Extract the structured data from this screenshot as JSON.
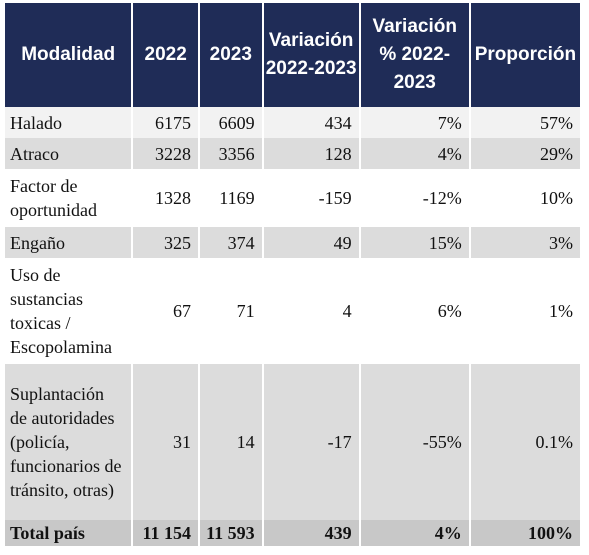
{
  "headers": [
    "Modalidad",
    "2022",
    "2023",
    "Variación 2022-2023",
    "Variación % 2022-2023",
    "Proporción"
  ],
  "rows": [
    {
      "modalidad": "Halado",
      "y2022": "6175",
      "y2023": "6609",
      "variacion": "434",
      "variacion_pct": "7%",
      "proporcion": "57%"
    },
    {
      "modalidad": "Atraco",
      "y2022": "3228",
      "y2023": "3356",
      "variacion": "128",
      "variacion_pct": "4%",
      "proporcion": "29%"
    },
    {
      "modalidad": "Factor de oportunidad",
      "y2022": "1328",
      "y2023": "1169",
      "variacion": "-159",
      "variacion_pct": "-12%",
      "proporcion": "10%"
    },
    {
      "modalidad": "Engaño",
      "y2022": "325",
      "y2023": "374",
      "variacion": "49",
      "variacion_pct": "15%",
      "proporcion": "3%"
    },
    {
      "modalidad": "Uso de sustancias toxicas / Escopolamina",
      "y2022": "67",
      "y2023": "71",
      "variacion": "4",
      "variacion_pct": "6%",
      "proporcion": "1%"
    },
    {
      "modalidad": "Suplantación de autoridades (policía, funcionarios de tránsito, otras)",
      "y2022": "31",
      "y2023": "14",
      "variacion": "-17",
      "variacion_pct": "-55%",
      "proporcion": "0.1%"
    }
  ],
  "total": {
    "modalidad": "Total país",
    "y2022": "11 154",
    "y2023": "11 593",
    "variacion": "439",
    "variacion_pct": "4%",
    "proporcion": "100%"
  },
  "colors": {
    "header_bg": "#1f2c57",
    "header_text": "#ffffff",
    "row_light": "#f2f2f2",
    "row_dark": "#dcdcdc",
    "total_bg": "#c8c8c8"
  }
}
